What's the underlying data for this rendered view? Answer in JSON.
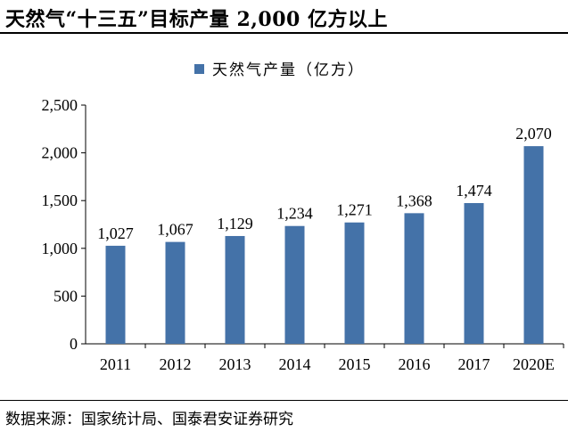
{
  "title": "天然气“十三五”目标产量 2,000 亿方以上",
  "source": "数据来源：国家统计局、国泰君安证券研究",
  "chart_data": {
    "type": "bar",
    "categories": [
      "2011",
      "2012",
      "2013",
      "2014",
      "2015",
      "2016",
      "2017",
      "2020E"
    ],
    "series": [
      {
        "name": "天然气产量（亿方）",
        "values": [
          1027,
          1067,
          1129,
          1234,
          1271,
          1368,
          1474,
          2070
        ],
        "labels": [
          "1,027",
          "1,067",
          "1,129",
          "1,234",
          "1,271",
          "1,368",
          "1,474",
          "2,070"
        ]
      }
    ],
    "yticks": [
      "0",
      "500",
      "1,000",
      "1,500",
      "2,000",
      "2,500"
    ],
    "ylim": [
      0,
      2500
    ],
    "grid": false,
    "legend": "top-center",
    "bar_color": "#4472a8"
  }
}
